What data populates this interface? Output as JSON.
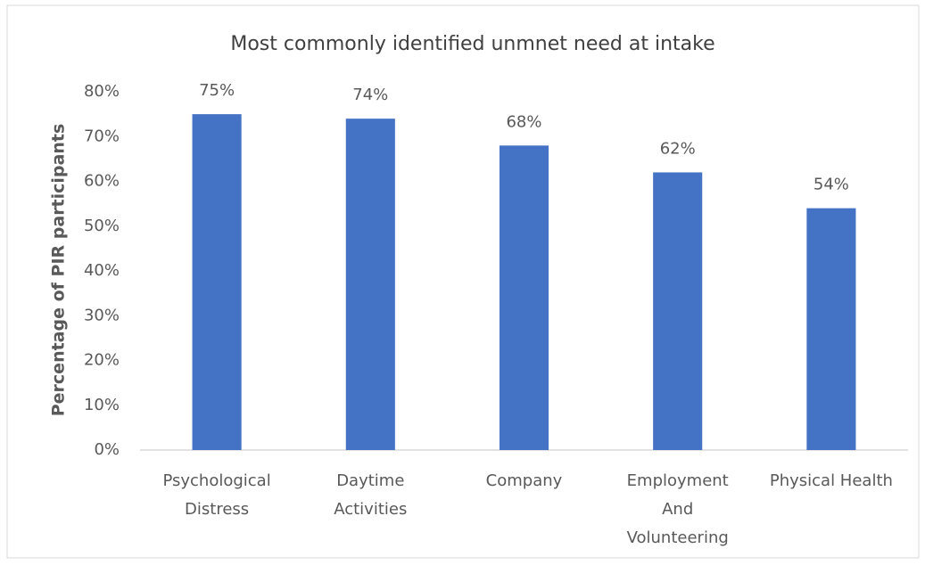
{
  "chart_data": {
    "type": "bar",
    "title": "Most commonly identified unmnet need at intake",
    "y_label": "Percentage of PIR participants",
    "categories": [
      [
        "Psychological",
        "Distress"
      ],
      [
        "Daytime",
        "Activities"
      ],
      [
        "Company"
      ],
      [
        "Employment",
        "And",
        "Volunteering"
      ],
      [
        "Physical Health"
      ]
    ],
    "values": [
      75,
      74,
      68,
      62,
      54
    ],
    "value_labels": [
      "75%",
      "74%",
      "68%",
      "62%",
      "54%"
    ],
    "color": "#4472c4",
    "ylim": [
      0,
      80
    ],
    "yticks": [
      {
        "value": 0,
        "label": "0%"
      },
      {
        "value": 10,
        "label": "10%"
      },
      {
        "value": 20,
        "label": "20%"
      },
      {
        "value": 30,
        "label": "30%"
      },
      {
        "value": 40,
        "label": "40%"
      },
      {
        "value": 50,
        "label": "50%"
      },
      {
        "value": 60,
        "label": "60%"
      },
      {
        "value": 70,
        "label": "70%"
      },
      {
        "value": 80,
        "label": "80%"
      }
    ],
    "grid": false
  }
}
